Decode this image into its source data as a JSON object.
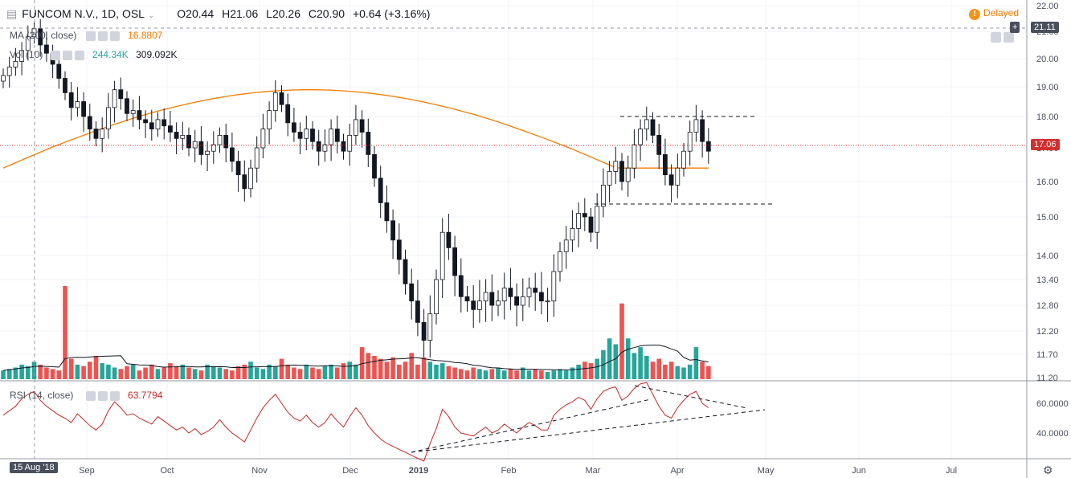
{
  "header": {
    "symbol": "FUNCOM N.V., 1D, OSL",
    "o_label": "O",
    "o": "20.44",
    "h_label": "H",
    "h": "21.06",
    "l_label": "L",
    "l": "20.26",
    "c_label": "C",
    "c": "20.90",
    "change": "+0.64 (+3.16%)",
    "delayed": "Delayed"
  },
  "indicators": {
    "ma_label": "MA (200, close)",
    "ma_value": "16.8807",
    "vol_label": "Vol (10)",
    "vol_value1": "244.34K",
    "vol_value2": "309.092K",
    "rsi_label": "RSI (14, close)",
    "rsi_value": "63.7794"
  },
  "price_tags": {
    "crosshair": "21.11",
    "last": "17.06"
  },
  "date_tag": "15 Aug '18",
  "colors": {
    "up": "#26a69a",
    "down": "#ef5350",
    "ma": "#f57c00",
    "rsi": "#c62828",
    "last": "#d32f2f"
  },
  "chart_data": {
    "type": "candlestick",
    "y_ticks": [
      "22.00",
      "21.00",
      "20.00",
      "19.00",
      "18.00",
      "17.00",
      "16.00",
      "15.00",
      "14.00",
      "13.40",
      "12.80",
      "12.20",
      "11.70",
      "11.20"
    ],
    "rsi_ticks": [
      "60.0000",
      "40.0000"
    ],
    "x_ticks": [
      "Sep",
      "Oct",
      "Nov",
      "Dec",
      "2019",
      "Feb",
      "Mar",
      "Apr",
      "May",
      "Jun",
      "Jul"
    ],
    "ma200_range": [
      16.4,
      18.9
    ],
    "closes": [
      19.4,
      19.7,
      19.9,
      20.3,
      20.8,
      21.1,
      20.5,
      20.2,
      19.8,
      19.3,
      18.8,
      18.3,
      18.5,
      18.0,
      17.6,
      17.3,
      17.6,
      18.3,
      18.9,
      18.6,
      18.1,
      18.2,
      17.9,
      17.8,
      17.6,
      17.9,
      17.7,
      17.5,
      17.3,
      17.4,
      17.0,
      17.2,
      16.8,
      16.9,
      17.1,
      17.4,
      17.0,
      16.6,
      16.2,
      15.8,
      16.4,
      17.0,
      17.6,
      18.2,
      18.8,
      18.4,
      17.8,
      17.5,
      17.3,
      17.6,
      17.2,
      16.9,
      17.1,
      17.6,
      17.2,
      16.9,
      17.4,
      17.9,
      17.5,
      16.8,
      16.1,
      15.4,
      14.9,
      14.4,
      13.9,
      13.3,
      12.9,
      12.4,
      12.0,
      12.6,
      13.4,
      14.6,
      14.2,
      13.5,
      13.0,
      12.9,
      12.7,
      12.9,
      13.1,
      12.8,
      12.9,
      13.2,
      13.0,
      12.8,
      13.0,
      13.2,
      13.1,
      12.9,
      12.9,
      13.6,
      14.1,
      14.4,
      14.7,
      15.1,
      15.0,
      14.6,
      15.3,
      15.9,
      16.3,
      16.6,
      16.0,
      16.4,
      17.1,
      17.6,
      17.9,
      17.4,
      16.8,
      16.2,
      15.9,
      16.4,
      16.9,
      17.5,
      17.9,
      17.2,
      16.9
    ],
    "opens": [
      19.2,
      19.4,
      19.7,
      19.9,
      20.3,
      20.8,
      21.1,
      20.5,
      20.2,
      19.8,
      19.3,
      18.8,
      18.3,
      18.5,
      18.0,
      17.6,
      17.3,
      17.6,
      18.3,
      18.9,
      18.6,
      18.1,
      18.2,
      17.9,
      17.8,
      17.6,
      17.9,
      17.7,
      17.5,
      17.3,
      17.4,
      17.0,
      17.2,
      16.8,
      16.9,
      17.1,
      17.4,
      17.0,
      16.6,
      16.2,
      15.8,
      16.4,
      17.0,
      17.6,
      18.2,
      18.8,
      18.4,
      17.8,
      17.5,
      17.3,
      17.6,
      17.2,
      16.9,
      17.1,
      17.6,
      17.2,
      16.9,
      17.4,
      17.9,
      17.5,
      16.8,
      16.1,
      15.4,
      14.9,
      14.4,
      13.9,
      13.3,
      12.9,
      12.4,
      12.0,
      12.6,
      13.4,
      14.6,
      14.2,
      13.5,
      13.0,
      12.9,
      12.7,
      12.9,
      13.1,
      12.8,
      12.9,
      13.2,
      13.0,
      12.8,
      13.0,
      13.2,
      13.1,
      12.9,
      12.9,
      13.6,
      14.1,
      14.4,
      14.7,
      15.1,
      15.0,
      14.6,
      15.3,
      15.9,
      16.3,
      16.6,
      16.0,
      16.4,
      17.1,
      17.6,
      17.9,
      17.4,
      16.8,
      16.2,
      15.9,
      16.4,
      16.9,
      17.5,
      17.9,
      17.2
    ],
    "volumes": [
      0.3,
      0.35,
      0.4,
      0.5,
      0.45,
      0.6,
      0.5,
      0.4,
      0.35,
      0.3,
      3.2,
      0.7,
      0.5,
      0.45,
      0.6,
      0.8,
      0.55,
      0.5,
      0.4,
      0.35,
      0.45,
      0.5,
      0.3,
      0.4,
      0.5,
      0.35,
      0.4,
      0.55,
      0.45,
      0.5,
      0.4,
      0.35,
      0.3,
      0.5,
      0.45,
      0.4,
      0.35,
      0.3,
      0.45,
      0.5,
      0.6,
      0.4,
      0.35,
      0.5,
      0.45,
      0.7,
      0.5,
      0.4,
      0.35,
      0.5,
      0.4,
      0.35,
      0.45,
      0.5,
      0.4,
      0.55,
      0.6,
      0.5,
      1.1,
      0.9,
      0.8,
      0.7,
      0.6,
      0.75,
      0.5,
      0.6,
      0.9,
      0.5,
      0.75,
      0.6,
      0.5,
      0.55,
      0.45,
      0.4,
      0.35,
      0.3,
      0.4,
      0.35,
      0.3,
      0.35,
      0.4,
      0.3,
      0.35,
      0.3,
      0.4,
      0.3,
      0.35,
      0.3,
      0.25,
      0.3,
      0.35,
      0.3,
      0.4,
      0.5,
      0.6,
      0.55,
      0.7,
      1.0,
      1.4,
      1.2,
      2.6,
      1.4,
      0.9,
      1.1,
      0.8,
      0.6,
      0.7,
      0.5,
      0.6,
      0.45,
      0.4,
      0.5,
      1.1,
      0.6,
      0.45
    ],
    "rsi": [
      52,
      55,
      58,
      63,
      66,
      68,
      62,
      58,
      55,
      52,
      50,
      47,
      53,
      49,
      45,
      42,
      46,
      55,
      61,
      57,
      52,
      53,
      50,
      48,
      46,
      51,
      48,
      45,
      42,
      44,
      40,
      43,
      39,
      41,
      44,
      49,
      44,
      40,
      37,
      34,
      42,
      50,
      57,
      62,
      66,
      60,
      54,
      50,
      48,
      52,
      47,
      44,
      47,
      53,
      48,
      44,
      51,
      57,
      52,
      45,
      40,
      36,
      33,
      31,
      29,
      27,
      25,
      23,
      21,
      33,
      43,
      56,
      51,
      44,
      40,
      39,
      38,
      41,
      44,
      40,
      42,
      46,
      43,
      40,
      44,
      47,
      45,
      42,
      42,
      52,
      56,
      59,
      61,
      64,
      62,
      56,
      63,
      68,
      70,
      71,
      62,
      65,
      70,
      73,
      74,
      66,
      58,
      52,
      50,
      57,
      62,
      66,
      68,
      60,
      57
    ]
  }
}
